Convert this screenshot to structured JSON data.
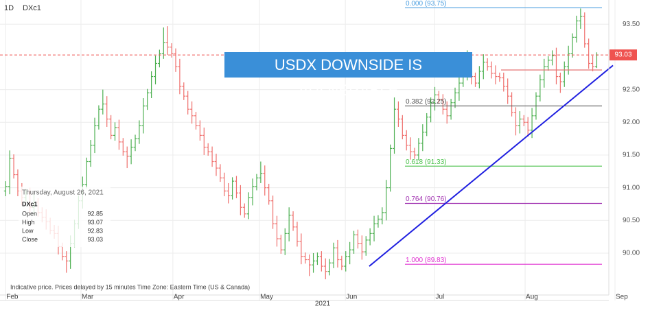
{
  "chart_data": {
    "type": "ohlc",
    "interval": "1D",
    "symbol": "DXc1",
    "xlabel": "2021",
    "note": "Indicative price. Prices delayed by 15 minutes    Time Zone: Eastern Time (US & Canada)",
    "banner": "USDX DOWNSIDE IS VULNERABLE",
    "info": {
      "date": "Thursday, August 26, 2021",
      "fields": [
        "Open",
        "High",
        "Low",
        "Close"
      ]
    },
    "up_color": "#4caf50",
    "down_color": "#ef6f6c",
    "grid": true,
    "ylim": [
      89.36,
      93.87
    ],
    "yticks": [
      {
        "value": 93.5,
        "label": "93.50"
      },
      {
        "value": 92.5,
        "label": "92.50"
      },
      {
        "value": 92,
        "label": "92.00"
      },
      {
        "value": 91.5,
        "label": "91.50"
      },
      {
        "value": 91,
        "label": "91.00"
      },
      {
        "value": 90.5,
        "label": "90.50"
      },
      {
        "value": 90,
        "label": "90.00"
      }
    ],
    "xlim": [
      -1.4,
      150.5
    ],
    "xticks": [
      {
        "value": 0,
        "label": "Feb"
      },
      {
        "value": 18.6,
        "label": "Mar"
      },
      {
        "value": 41.3,
        "label": "Apr"
      },
      {
        "value": 62.7,
        "label": "May"
      },
      {
        "value": 83.9,
        "label": "Jun"
      },
      {
        "value": 106,
        "label": "Jul"
      },
      {
        "value": 128.3,
        "label": "Aug"
      },
      {
        "value": 150.5,
        "label": "Sep"
      }
    ],
    "fib_levels": [
      {
        "label": "0.000 (93.75)",
        "value": 93.75,
        "color": "#4a9ee0"
      },
      {
        "label": "0.382 (92.25)",
        "value": 92.25,
        "color": "#555555"
      },
      {
        "label": "0.618 (91.33)",
        "value": 91.33,
        "color": "#4cc24c"
      },
      {
        "label": "0.764 (90.76)",
        "value": 90.76,
        "color": "#a030b0"
      },
      {
        "label": "1.000 (89.83)",
        "value": 89.83,
        "color": "#e030d0"
      }
    ],
    "hlines": [
      {
        "value": 92.8,
        "color": "#e57373"
      }
    ],
    "last_color": "#ef5350",
    "trendline": {
      "x": [
        89.8,
        150
      ],
      "y": [
        89.8,
        92.87
      ],
      "color": "#2020e0"
    },
    "ohlc": [
      [
        90.95,
        91.1,
        90.87,
        91.02
      ],
      [
        91.02,
        91.57,
        90.9,
        91.45
      ],
      [
        91.45,
        91.51,
        91.14,
        91.2
      ],
      [
        91.2,
        91.28,
        90.87,
        90.95
      ],
      [
        90.95,
        91.07,
        90.73,
        90.85
      ],
      [
        90.85,
        90.98,
        90.79,
        90.92
      ],
      [
        90.92,
        91.0,
        90.62,
        90.7
      ],
      [
        90.7,
        90.9,
        90.58,
        90.78
      ],
      [
        90.78,
        90.84,
        90.56,
        90.62
      ],
      [
        90.62,
        90.7,
        90.47,
        90.55
      ],
      [
        90.55,
        90.67,
        90.36,
        90.48
      ],
      [
        90.48,
        90.54,
        90.29,
        90.35
      ],
      [
        90.35,
        90.43,
        90.22,
        90.3
      ],
      [
        90.3,
        90.42,
        89.98,
        90.1
      ],
      [
        90.1,
        90.16,
        89.89,
        89.95
      ],
      [
        89.95,
        90.03,
        89.7,
        89.88
      ],
      [
        89.88,
        90.27,
        89.76,
        90.15
      ],
      [
        90.15,
        90.51,
        90.09,
        90.45
      ],
      [
        90.45,
        90.88,
        90.37,
        90.8
      ],
      [
        90.8,
        91.17,
        90.68,
        91.05
      ],
      [
        91.05,
        91.46,
        90.99,
        91.4
      ],
      [
        91.4,
        91.73,
        91.32,
        91.65
      ],
      [
        91.65,
        92.07,
        91.53,
        91.95
      ],
      [
        91.95,
        92.26,
        91.89,
        92.2
      ],
      [
        92.2,
        92.5,
        92.12,
        92.28
      ],
      [
        92.28,
        92.4,
        91.93,
        92.05
      ],
      [
        92.05,
        92.11,
        91.74,
        91.8
      ],
      [
        91.8,
        92.0,
        91.72,
        91.92
      ],
      [
        91.92,
        92.04,
        91.58,
        91.7
      ],
      [
        91.7,
        91.76,
        91.49,
        91.55
      ],
      [
        91.55,
        91.63,
        91.3,
        91.48
      ],
      [
        91.48,
        91.74,
        91.36,
        91.62
      ],
      [
        91.62,
        91.81,
        91.56,
        91.75
      ],
      [
        91.75,
        92.03,
        91.67,
        91.95
      ],
      [
        91.95,
        92.37,
        91.83,
        92.25
      ],
      [
        92.25,
        92.51,
        92.19,
        92.45
      ],
      [
        92.45,
        92.78,
        92.37,
        92.7
      ],
      [
        92.7,
        93.02,
        92.58,
        92.9
      ],
      [
        92.9,
        93.11,
        92.84,
        93.05
      ],
      [
        93.05,
        93.45,
        92.97,
        93.22
      ],
      [
        93.22,
        93.47,
        93.03,
        93.15
      ],
      [
        93.15,
        93.21,
        92.99,
        93.05
      ],
      [
        93.05,
        93.13,
        92.77,
        92.85
      ],
      [
        92.85,
        92.97,
        92.43,
        92.55
      ],
      [
        92.55,
        92.61,
        92.34,
        92.4
      ],
      [
        92.4,
        92.48,
        92.12,
        92.2
      ],
      [
        92.2,
        92.32,
        91.98,
        92.1
      ],
      [
        92.1,
        92.16,
        91.89,
        91.95
      ],
      [
        91.95,
        92.03,
        91.72,
        91.8
      ],
      [
        91.8,
        91.92,
        91.5,
        91.62
      ],
      [
        91.62,
        91.68,
        91.49,
        91.55
      ],
      [
        91.55,
        91.63,
        91.32,
        91.4
      ],
      [
        91.4,
        91.52,
        91.18,
        91.3
      ],
      [
        91.3,
        91.36,
        91.09,
        91.15
      ],
      [
        91.15,
        91.23,
        90.87,
        90.95
      ],
      [
        90.95,
        91.07,
        90.76,
        90.88
      ],
      [
        90.88,
        91.16,
        90.82,
        91.1
      ],
      [
        91.1,
        91.18,
        90.84,
        90.92
      ],
      [
        90.92,
        91.04,
        90.58,
        90.7
      ],
      [
        90.7,
        90.76,
        90.54,
        90.6
      ],
      [
        90.6,
        90.93,
        90.52,
        90.85
      ],
      [
        90.85,
        91.14,
        90.73,
        91.02
      ],
      [
        91.02,
        91.21,
        90.96,
        91.15
      ],
      [
        91.15,
        91.4,
        91.07,
        91.22
      ],
      [
        91.22,
        91.34,
        90.88,
        91.0
      ],
      [
        91.0,
        91.06,
        90.74,
        90.8
      ],
      [
        90.8,
        90.88,
        90.37,
        90.45
      ],
      [
        90.45,
        90.57,
        90.1,
        90.22
      ],
      [
        90.22,
        90.28,
        89.99,
        90.05
      ],
      [
        90.05,
        90.38,
        89.97,
        90.3
      ],
      [
        90.3,
        90.7,
        90.18,
        90.58
      ],
      [
        90.58,
        90.64,
        90.34,
        90.4
      ],
      [
        90.4,
        90.48,
        90.1,
        90.18
      ],
      [
        90.18,
        90.3,
        89.83,
        89.95
      ],
      [
        89.95,
        90.01,
        89.84,
        89.9
      ],
      [
        89.9,
        89.98,
        89.65,
        89.82
      ],
      [
        89.82,
        90.0,
        89.7,
        89.88
      ],
      [
        89.88,
        90.01,
        89.82,
        89.95
      ],
      [
        89.95,
        90.03,
        89.72,
        89.8
      ],
      [
        89.8,
        89.92,
        89.6,
        89.72
      ],
      [
        89.72,
        89.91,
        89.66,
        89.85
      ],
      [
        89.85,
        90.16,
        89.77,
        90.08
      ],
      [
        90.08,
        90.2,
        89.78,
        89.9
      ],
      [
        89.9,
        89.96,
        89.74,
        89.8
      ],
      [
        89.8,
        90.03,
        89.72,
        89.95
      ],
      [
        89.95,
        90.17,
        89.83,
        90.05
      ],
      [
        90.05,
        90.34,
        89.99,
        90.28
      ],
      [
        90.28,
        90.36,
        90.07,
        90.15
      ],
      [
        90.15,
        90.27,
        89.9,
        90.02
      ],
      [
        90.02,
        90.26,
        89.96,
        90.2
      ],
      [
        90.2,
        90.38,
        90.12,
        90.3
      ],
      [
        90.3,
        90.57,
        90.18,
        90.45
      ],
      [
        90.45,
        90.58,
        90.39,
        90.52
      ],
      [
        90.52,
        90.7,
        90.44,
        90.62
      ],
      [
        90.62,
        91.12,
        90.5,
        91.0
      ],
      [
        91.0,
        91.66,
        90.94,
        91.6
      ],
      [
        91.6,
        92.38,
        91.52,
        92.2
      ],
      [
        92.2,
        92.32,
        91.93,
        92.05
      ],
      [
        92.05,
        92.11,
        91.74,
        91.8
      ],
      [
        91.8,
        91.88,
        91.57,
        91.65
      ],
      [
        91.65,
        91.77,
        91.43,
        91.55
      ],
      [
        91.55,
        91.61,
        91.44,
        91.5
      ],
      [
        91.5,
        91.76,
        91.42,
        91.68
      ],
      [
        91.68,
        91.97,
        91.56,
        91.85
      ],
      [
        91.85,
        92.14,
        91.79,
        92.08
      ],
      [
        92.08,
        92.38,
        92.0,
        92.3
      ],
      [
        92.3,
        92.54,
        92.18,
        92.42
      ],
      [
        92.42,
        92.48,
        92.29,
        92.35
      ],
      [
        92.35,
        92.43,
        92.12,
        92.2
      ],
      [
        92.2,
        92.32,
        91.98,
        92.1
      ],
      [
        92.1,
        92.36,
        92.04,
        92.3
      ],
      [
        92.3,
        92.53,
        92.22,
        92.45
      ],
      [
        92.45,
        92.72,
        92.33,
        92.6
      ],
      [
        92.6,
        92.78,
        92.54,
        92.72
      ],
      [
        92.72,
        93.1,
        92.64,
        92.85
      ],
      [
        92.85,
        92.97,
        92.58,
        92.7
      ],
      [
        92.7,
        92.76,
        92.54,
        92.6
      ],
      [
        92.6,
        92.86,
        92.52,
        92.78
      ],
      [
        92.78,
        93.04,
        92.66,
        92.92
      ],
      [
        92.92,
        92.98,
        92.79,
        92.85
      ],
      [
        92.85,
        92.93,
        92.67,
        92.75
      ],
      [
        92.75,
        92.87,
        92.58,
        92.7
      ],
      [
        92.7,
        92.76,
        92.62,
        92.68
      ],
      [
        92.68,
        92.76,
        92.47,
        92.55
      ],
      [
        92.55,
        92.67,
        92.28,
        92.4
      ],
      [
        92.4,
        92.46,
        92.09,
        92.15
      ],
      [
        92.15,
        92.23,
        91.8,
        91.95
      ],
      [
        91.95,
        92.17,
        91.83,
        92.05
      ],
      [
        92.05,
        92.11,
        91.94,
        92.0
      ],
      [
        92.0,
        92.08,
        91.78,
        91.88
      ],
      [
        91.88,
        92.22,
        91.76,
        92.1
      ],
      [
        92.1,
        92.46,
        92.04,
        92.4
      ],
      [
        92.4,
        92.73,
        92.32,
        92.65
      ],
      [
        92.65,
        92.97,
        92.53,
        92.85
      ],
      [
        92.85,
        93.01,
        92.79,
        92.95
      ],
      [
        92.95,
        93.1,
        92.87,
        93.02
      ],
      [
        93.02,
        93.14,
        92.58,
        92.7
      ],
      [
        92.7,
        92.76,
        92.45,
        92.62
      ],
      [
        92.62,
        92.93,
        92.54,
        92.85
      ],
      [
        92.85,
        93.17,
        92.73,
        93.05
      ],
      [
        93.05,
        93.36,
        92.99,
        93.3
      ],
      [
        93.3,
        93.63,
        93.22,
        93.55
      ],
      [
        93.55,
        93.74,
        93.43,
        93.62
      ],
      [
        93.62,
        93.68,
        93.14,
        93.2
      ],
      [
        93.2,
        93.28,
        92.82,
        92.9
      ],
      [
        92.9,
        93.02,
        92.78,
        92.85
      ],
      [
        92.85,
        93.07,
        92.83,
        93.03
      ]
    ]
  }
}
